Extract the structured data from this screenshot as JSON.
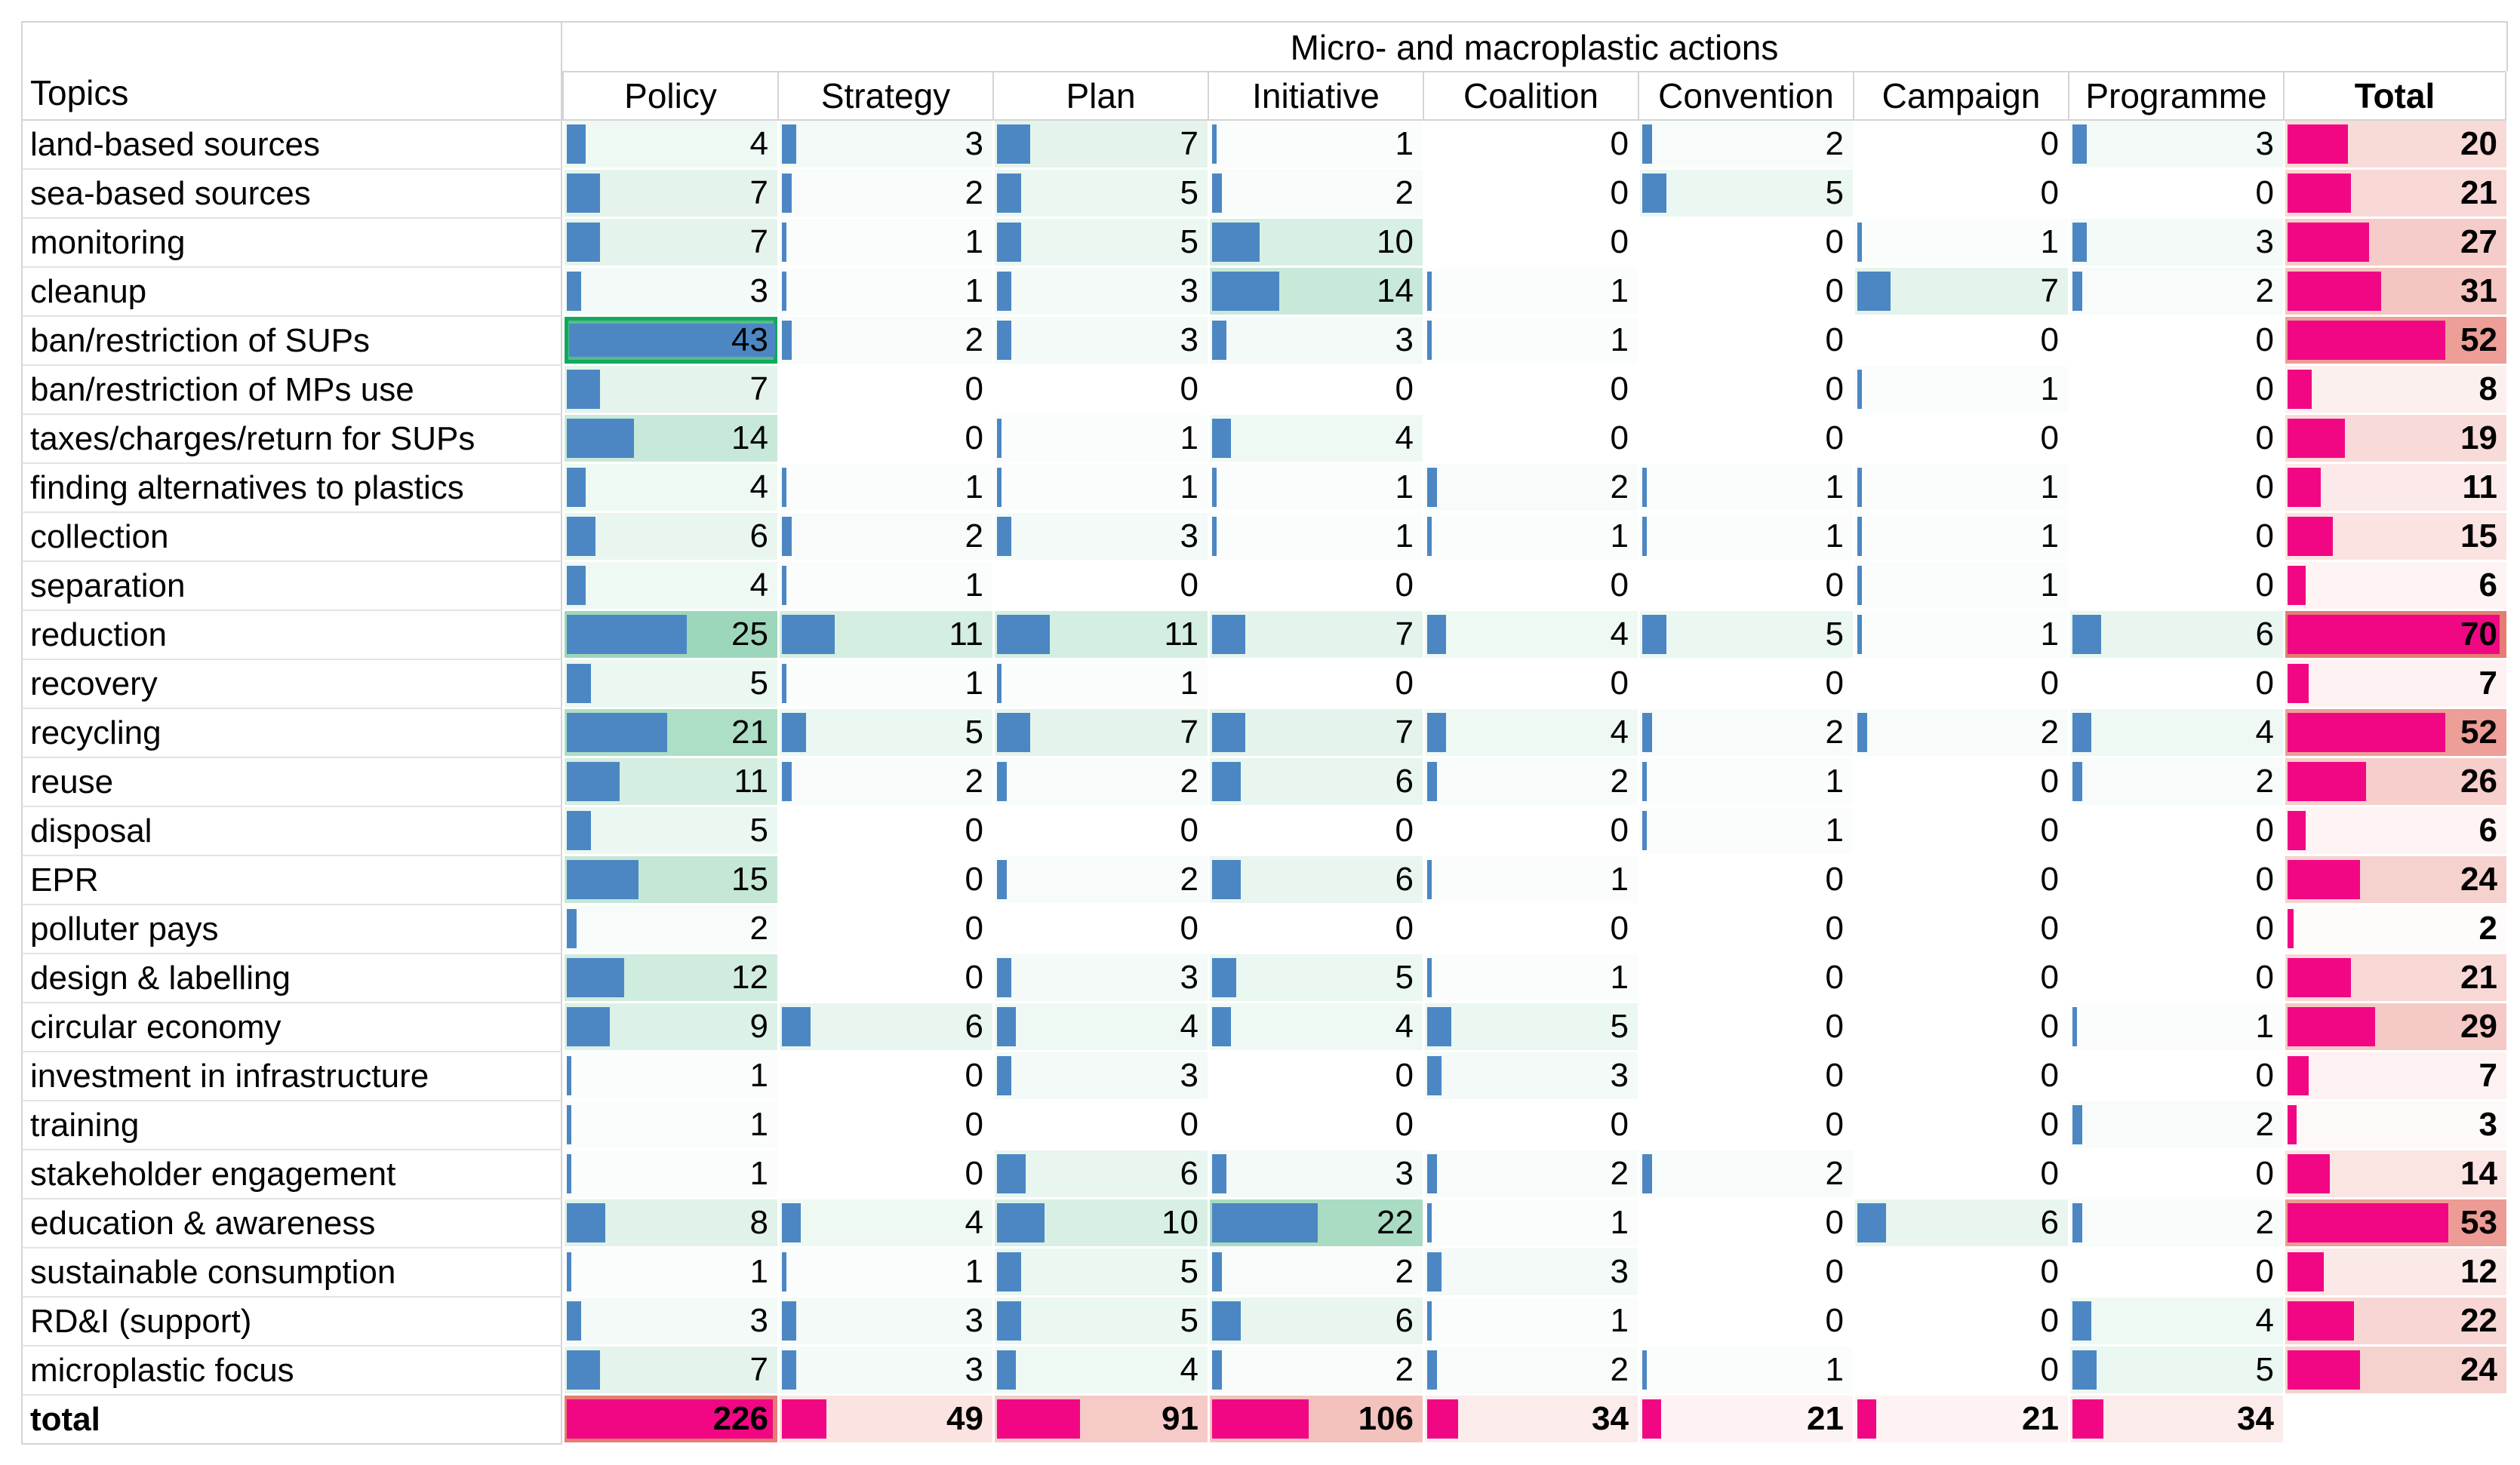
{
  "header": {
    "title": "Micro- and macroplastic actions",
    "topics_label": "Topics",
    "total_label": "Total",
    "action_columns": [
      "Policy",
      "Strategy",
      "Plan",
      "Initiative",
      "Coalition",
      "Convention",
      "Campaign",
      "Programme"
    ]
  },
  "chart_data": {
    "type": "heatmap",
    "title": "Micro- and macroplastic actions",
    "columns": [
      "Policy",
      "Strategy",
      "Plan",
      "Initiative",
      "Coalition",
      "Convention",
      "Campaign",
      "Programme",
      "Total"
    ],
    "rows": [
      {
        "topic": "land-based sources",
        "values": [
          4,
          3,
          7,
          1,
          0,
          2,
          0,
          3
        ],
        "total": 20
      },
      {
        "topic": "sea-based sources",
        "values": [
          7,
          2,
          5,
          2,
          0,
          5,
          0,
          0
        ],
        "total": 21
      },
      {
        "topic": "monitoring",
        "values": [
          7,
          1,
          5,
          10,
          0,
          0,
          1,
          3
        ],
        "total": 27
      },
      {
        "topic": "cleanup",
        "values": [
          3,
          1,
          3,
          14,
          1,
          0,
          7,
          2
        ],
        "total": 31
      },
      {
        "topic": "ban/restriction of SUPs",
        "values": [
          43,
          2,
          3,
          3,
          1,
          0,
          0,
          0
        ],
        "total": 52
      },
      {
        "topic": "ban/restriction of MPs use",
        "values": [
          7,
          0,
          0,
          0,
          0,
          0,
          1,
          0
        ],
        "total": 8
      },
      {
        "topic": "taxes/charges/return for SUPs",
        "values": [
          14,
          0,
          1,
          4,
          0,
          0,
          0,
          0
        ],
        "total": 19
      },
      {
        "topic": "finding alternatives to plastics",
        "values": [
          4,
          1,
          1,
          1,
          2,
          1,
          1,
          0
        ],
        "total": 11
      },
      {
        "topic": "collection",
        "values": [
          6,
          2,
          3,
          1,
          1,
          1,
          1,
          0
        ],
        "total": 15
      },
      {
        "topic": "separation",
        "values": [
          4,
          1,
          0,
          0,
          0,
          0,
          1,
          0
        ],
        "total": 6
      },
      {
        "topic": "reduction",
        "values": [
          25,
          11,
          11,
          7,
          4,
          5,
          1,
          6
        ],
        "total": 70
      },
      {
        "topic": "recovery",
        "values": [
          5,
          1,
          1,
          0,
          0,
          0,
          0,
          0
        ],
        "total": 7
      },
      {
        "topic": "recycling",
        "values": [
          21,
          5,
          7,
          7,
          4,
          2,
          2,
          4
        ],
        "total": 52
      },
      {
        "topic": "reuse",
        "values": [
          11,
          2,
          2,
          6,
          2,
          1,
          0,
          2
        ],
        "total": 26
      },
      {
        "topic": "disposal",
        "values": [
          5,
          0,
          0,
          0,
          0,
          1,
          0,
          0
        ],
        "total": 6
      },
      {
        "topic": "EPR",
        "values": [
          15,
          0,
          2,
          6,
          1,
          0,
          0,
          0
        ],
        "total": 24
      },
      {
        "topic": "polluter pays",
        "values": [
          2,
          0,
          0,
          0,
          0,
          0,
          0,
          0
        ],
        "total": 2
      },
      {
        "topic": "design & labelling",
        "values": [
          12,
          0,
          3,
          5,
          1,
          0,
          0,
          0
        ],
        "total": 21
      },
      {
        "topic": "circular economy",
        "values": [
          9,
          6,
          4,
          4,
          5,
          0,
          0,
          1
        ],
        "total": 29
      },
      {
        "topic": "investment in infrastructure",
        "values": [
          1,
          0,
          3,
          0,
          3,
          0,
          0,
          0
        ],
        "total": 7
      },
      {
        "topic": "training",
        "values": [
          1,
          0,
          0,
          0,
          0,
          0,
          0,
          2
        ],
        "total": 3
      },
      {
        "topic": "stakeholder engagement",
        "values": [
          1,
          0,
          6,
          3,
          2,
          2,
          0,
          0
        ],
        "total": 14
      },
      {
        "topic": "education & awareness",
        "values": [
          8,
          4,
          10,
          22,
          1,
          0,
          6,
          2
        ],
        "total": 53
      },
      {
        "topic": "sustainable consumption",
        "values": [
          1,
          1,
          5,
          2,
          3,
          0,
          0,
          0
        ],
        "total": 12
      },
      {
        "topic": "RD&I (support)",
        "values": [
          3,
          3,
          5,
          6,
          1,
          0,
          0,
          4
        ],
        "total": 22
      },
      {
        "topic": "microplastic focus",
        "values": [
          7,
          3,
          4,
          2,
          2,
          1,
          0,
          5
        ],
        "total": 24
      }
    ],
    "totals_row": {
      "label": "total",
      "values": [
        226,
        49,
        91,
        106,
        34,
        21,
        21,
        34
      ]
    },
    "layout": {
      "legend": "none",
      "grid": "off",
      "blue_bar_max": 43,
      "green_scale_max": 43,
      "total_column_scale_max": 70,
      "totals_row_scale_max": 226
    }
  },
  "selection": {
    "topic": "ban/restriction of SUPs",
    "column": "Policy",
    "value": 43
  },
  "colors": {
    "bar_blue": "#4C87C3",
    "bar_pink": "#F10784",
    "green_max": "#57BB8A",
    "red_max": "#E67C73",
    "selected_cell_border": "#10A95E",
    "grid_line": "#D4D4D4",
    "text": "#000000"
  }
}
